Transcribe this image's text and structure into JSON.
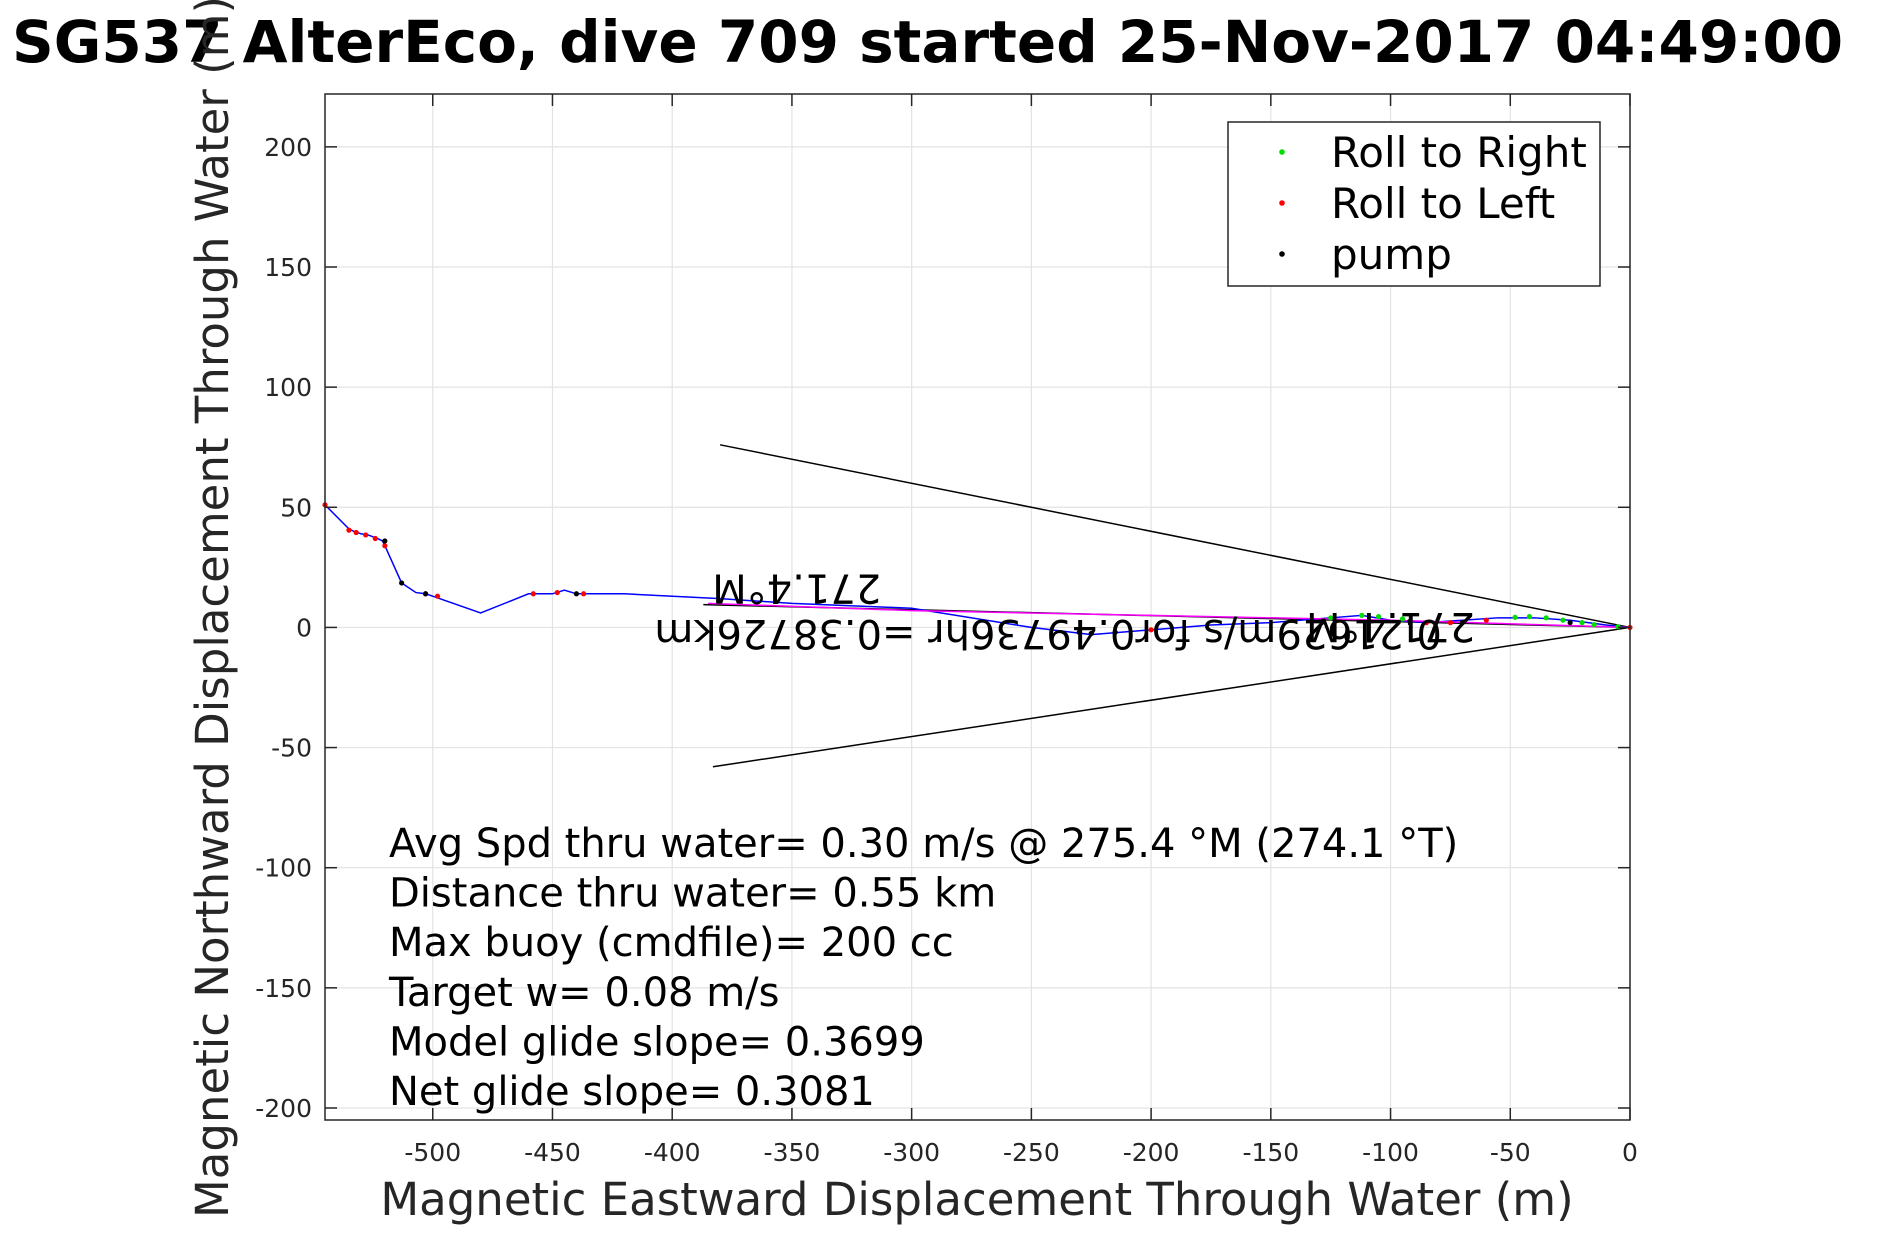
{
  "chart_data": {
    "type": "line",
    "title": "SG537 AlterEco, dive 709 started 25-Nov-2017 04:49:00",
    "xlabel": "Magnetic Eastward Displacement Through Water (m)",
    "ylabel": "Magnetic Northward Displacement Through Water (m)",
    "xlim": [
      -545,
      0
    ],
    "ylim": [
      -205,
      222
    ],
    "xticks": [
      -500,
      -450,
      -400,
      -350,
      -300,
      -250,
      -200,
      -150,
      -100,
      -50,
      0
    ],
    "yticks": [
      -200,
      -150,
      -100,
      -50,
      0,
      50,
      100,
      150,
      200
    ],
    "xtick_labels": [
      "-500",
      "-450",
      "-400",
      "-350",
      "-300",
      "-250",
      "-200",
      "-150",
      "-100",
      "-50",
      "0"
    ],
    "ytick_labels": [
      "-200",
      "-150",
      "-100",
      "-50",
      "0",
      "50",
      "100",
      "150",
      "200"
    ],
    "grid": true,
    "legend_position": "top-right",
    "legend": [
      {
        "label": "Roll to Right",
        "color": "#00dd00"
      },
      {
        "label": "Roll to Left",
        "color": "#ff0000"
      },
      {
        "label": "pump",
        "color": "#000000"
      }
    ],
    "series": [
      {
        "color": "#0000ff",
        "x": [
          0,
          -10,
          -25,
          -40,
          -55,
          -70,
          -85,
          -100,
          -112,
          -125,
          -150,
          -175,
          -200,
          -225,
          -250,
          -300,
          -350,
          -380,
          -420,
          -440,
          -445,
          -450,
          -460,
          -480,
          -500,
          -503,
          -507,
          -513,
          -520,
          -521,
          -523,
          -527,
          -530,
          -533,
          -535,
          -545
        ],
        "y": [
          0,
          1,
          3,
          4,
          4,
          3,
          2,
          3,
          5,
          4,
          2,
          1,
          -1,
          -3,
          0,
          8,
          10,
          12,
          14,
          14,
          15.5,
          14,
          14,
          6,
          13,
          14,
          14.5,
          18.5,
          34,
          36,
          37,
          38.5,
          39,
          40,
          41,
          51
        ]
      },
      {
        "color": "#ff00ff",
        "x": [
          0,
          -100,
          -200,
          -300,
          -385
        ],
        "y": [
          0,
          3,
          5,
          7,
          10
        ]
      }
    ],
    "markers": {
      "roll_to_right": {
        "x": [
          -5,
          -15,
          -20,
          -28,
          -35,
          -42,
          -48,
          -95,
          -105,
          -112,
          -125
        ],
        "y": [
          0.3,
          1.2,
          2,
          3,
          4,
          4.5,
          4.2,
          3.5,
          4.5,
          5,
          4
        ]
      },
      "roll_to_left": {
        "x": [
          0,
          -60,
          -75,
          -85,
          -200,
          -437,
          -448,
          -458,
          -498,
          -503,
          -520,
          -524,
          -528,
          -532,
          -535,
          -545
        ],
        "y": [
          0,
          3,
          2,
          2,
          -1,
          14,
          14.5,
          14,
          13,
          14,
          34,
          37,
          38.5,
          39.5,
          40.5,
          51
        ]
      },
      "pump": {
        "x": [
          -25,
          -70,
          -92,
          -215,
          -225,
          -230,
          -440,
          -503,
          -513,
          -520
        ],
        "y": [
          2,
          2,
          2.5,
          -2,
          -2.5,
          -2,
          14,
          14,
          18.5,
          36
        ]
      }
    },
    "bearing_lines": [
      {
        "x": [
          0,
          -380
        ],
        "y": [
          0,
          76
        ]
      },
      {
        "x": [
          0,
          -383
        ],
        "y": [
          0,
          -58
        ]
      },
      {
        "x": [
          0,
          -387
        ],
        "y": [
          0,
          9.5
        ]
      }
    ],
    "flipped_labels": [
      {
        "text": "271.4°M",
        "x": -348,
        "y": 22
      },
      {
        "text": "271.4°M",
        "x": -100,
        "y": 6
      },
      {
        "text": "0.21629m/s for0.49736hr =0.38726km",
        "x": -243,
        "y": 3
      }
    ],
    "annotations": [
      "Avg Spd thru water=  0.30 m/s @ 275.4 °M (274.1 °T)",
      "Distance thru water=  0.55 km",
      "Max buoy (cmdfile)= 200 cc",
      "Target w= 0.08 m/s",
      "Model glide slope= 0.3699",
      "Net glide slope= 0.3081"
    ]
  }
}
